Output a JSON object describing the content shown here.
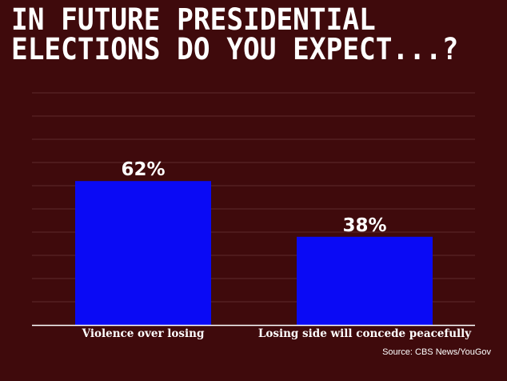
{
  "colors": {
    "background": "#3f0a0c",
    "bar": "#0a0af5",
    "grid": "#5e2b2c",
    "text": "#ffffff"
  },
  "title_lines": [
    "IN FUTURE PRESIDENTIAL",
    "ELECTIONS DO YOU EXPECT...?"
  ],
  "source": "Source: CBS News/YouGov",
  "chart_data": {
    "type": "bar",
    "title": "IN FUTURE PRESIDENTIAL ELECTIONS DO YOU EXPECT...?",
    "categories": [
      "Violence over losing",
      "Losing side will concede peacefully"
    ],
    "values": [
      62,
      38
    ],
    "data_labels": [
      "62%",
      "38%"
    ],
    "ylim": [
      0,
      100
    ],
    "grid": true,
    "legend": "none"
  }
}
